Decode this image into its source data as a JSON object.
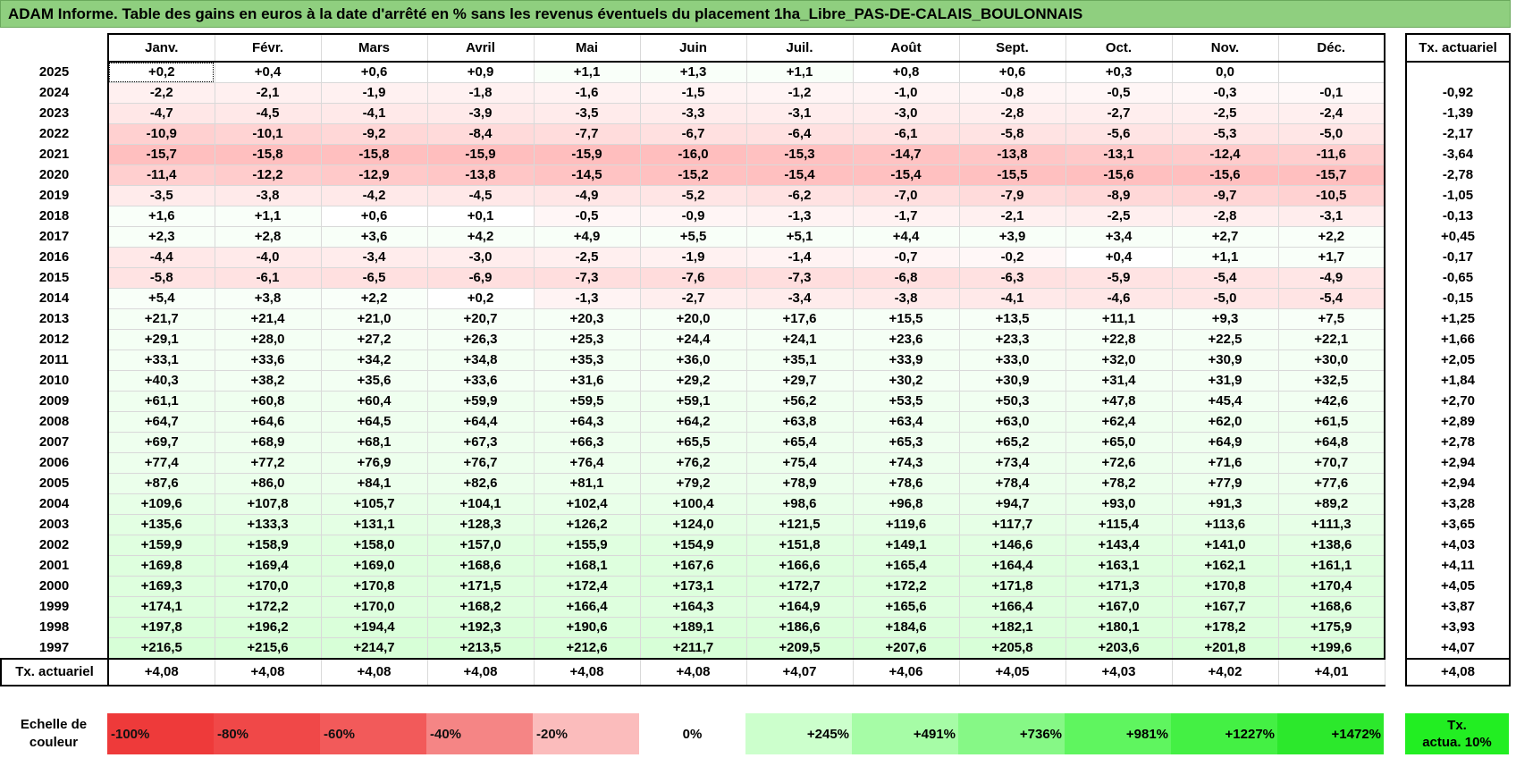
{
  "title": "ADAM Informe. Table des gains en euros à la date d'arrêté en % sans les revenus éventuels du placement 1ha_Libre_PAS-DE-CALAIS_BOULONNAIS",
  "months": [
    "Janv.",
    "Févr.",
    "Mars",
    "Avril",
    "Mai",
    "Juin",
    "Juil.",
    "Août",
    "Sept.",
    "Oct.",
    "Nov.",
    "Déc."
  ],
  "tx_header": "Tx. actuariel",
  "rows": [
    {
      "year": "2025",
      "values": [
        "+0,2",
        "+0,4",
        "+0,6",
        "+0,9",
        "+1,1",
        "+1,3",
        "+1,1",
        "+0,8",
        "+0,6",
        "+0,3",
        "0,0",
        ""
      ],
      "tx": ""
    },
    {
      "year": "2024",
      "values": [
        "-2,2",
        "-2,1",
        "-1,9",
        "-1,8",
        "-1,6",
        "-1,5",
        "-1,2",
        "-1,0",
        "-0,8",
        "-0,5",
        "-0,3",
        "-0,1"
      ],
      "tx": "-0,92"
    },
    {
      "year": "2023",
      "values": [
        "-4,7",
        "-4,5",
        "-4,1",
        "-3,9",
        "-3,5",
        "-3,3",
        "-3,1",
        "-3,0",
        "-2,8",
        "-2,7",
        "-2,5",
        "-2,4"
      ],
      "tx": "-1,39"
    },
    {
      "year": "2022",
      "values": [
        "-10,9",
        "-10,1",
        "-9,2",
        "-8,4",
        "-7,7",
        "-6,7",
        "-6,4",
        "-6,1",
        "-5,8",
        "-5,6",
        "-5,3",
        "-5,0"
      ],
      "tx": "-2,17"
    },
    {
      "year": "2021",
      "values": [
        "-15,7",
        "-15,8",
        "-15,8",
        "-15,9",
        "-15,9",
        "-16,0",
        "-15,3",
        "-14,7",
        "-13,8",
        "-13,1",
        "-12,4",
        "-11,6"
      ],
      "tx": "-3,64"
    },
    {
      "year": "2020",
      "values": [
        "-11,4",
        "-12,2",
        "-12,9",
        "-13,8",
        "-14,5",
        "-15,2",
        "-15,4",
        "-15,4",
        "-15,5",
        "-15,6",
        "-15,6",
        "-15,7"
      ],
      "tx": "-2,78"
    },
    {
      "year": "2019",
      "values": [
        "-3,5",
        "-3,8",
        "-4,2",
        "-4,5",
        "-4,9",
        "-5,2",
        "-6,2",
        "-7,0",
        "-7,9",
        "-8,9",
        "-9,7",
        "-10,5"
      ],
      "tx": "-1,05"
    },
    {
      "year": "2018",
      "values": [
        "+1,6",
        "+1,1",
        "+0,6",
        "+0,1",
        "-0,5",
        "-0,9",
        "-1,3",
        "-1,7",
        "-2,1",
        "-2,5",
        "-2,8",
        "-3,1"
      ],
      "tx": "-0,13"
    },
    {
      "year": "2017",
      "values": [
        "+2,3",
        "+2,8",
        "+3,6",
        "+4,2",
        "+4,9",
        "+5,5",
        "+5,1",
        "+4,4",
        "+3,9",
        "+3,4",
        "+2,7",
        "+2,2"
      ],
      "tx": "+0,45"
    },
    {
      "year": "2016",
      "values": [
        "-4,4",
        "-4,0",
        "-3,4",
        "-3,0",
        "-2,5",
        "-1,9",
        "-1,4",
        "-0,7",
        "-0,2",
        "+0,4",
        "+1,1",
        "+1,7"
      ],
      "tx": "-0,17"
    },
    {
      "year": "2015",
      "values": [
        "-5,8",
        "-6,1",
        "-6,5",
        "-6,9",
        "-7,3",
        "-7,6",
        "-7,3",
        "-6,8",
        "-6,3",
        "-5,9",
        "-5,4",
        "-4,9"
      ],
      "tx": "-0,65"
    },
    {
      "year": "2014",
      "values": [
        "+5,4",
        "+3,8",
        "+2,2",
        "+0,2",
        "-1,3",
        "-2,7",
        "-3,4",
        "-3,8",
        "-4,1",
        "-4,6",
        "-5,0",
        "-5,4"
      ],
      "tx": "-0,15"
    },
    {
      "year": "2013",
      "values": [
        "+21,7",
        "+21,4",
        "+21,0",
        "+20,7",
        "+20,3",
        "+20,0",
        "+17,6",
        "+15,5",
        "+13,5",
        "+11,1",
        "+9,3",
        "+7,5"
      ],
      "tx": "+1,25"
    },
    {
      "year": "2012",
      "values": [
        "+29,1",
        "+28,0",
        "+27,2",
        "+26,3",
        "+25,3",
        "+24,4",
        "+24,1",
        "+23,6",
        "+23,3",
        "+22,8",
        "+22,5",
        "+22,1"
      ],
      "tx": "+1,66"
    },
    {
      "year": "2011",
      "values": [
        "+33,1",
        "+33,6",
        "+34,2",
        "+34,8",
        "+35,3",
        "+36,0",
        "+35,1",
        "+33,9",
        "+33,0",
        "+32,0",
        "+30,9",
        "+30,0"
      ],
      "tx": "+2,05"
    },
    {
      "year": "2010",
      "values": [
        "+40,3",
        "+38,2",
        "+35,6",
        "+33,6",
        "+31,6",
        "+29,2",
        "+29,7",
        "+30,2",
        "+30,9",
        "+31,4",
        "+31,9",
        "+32,5"
      ],
      "tx": "+1,84"
    },
    {
      "year": "2009",
      "values": [
        "+61,1",
        "+60,8",
        "+60,4",
        "+59,9",
        "+59,5",
        "+59,1",
        "+56,2",
        "+53,5",
        "+50,3",
        "+47,8",
        "+45,4",
        "+42,6"
      ],
      "tx": "+2,70"
    },
    {
      "year": "2008",
      "values": [
        "+64,7",
        "+64,6",
        "+64,5",
        "+64,4",
        "+64,3",
        "+64,2",
        "+63,8",
        "+63,4",
        "+63,0",
        "+62,4",
        "+62,0",
        "+61,5"
      ],
      "tx": "+2,89"
    },
    {
      "year": "2007",
      "values": [
        "+69,7",
        "+68,9",
        "+68,1",
        "+67,3",
        "+66,3",
        "+65,5",
        "+65,4",
        "+65,3",
        "+65,2",
        "+65,0",
        "+64,9",
        "+64,8"
      ],
      "tx": "+2,78"
    },
    {
      "year": "2006",
      "values": [
        "+77,4",
        "+77,2",
        "+76,9",
        "+76,7",
        "+76,4",
        "+76,2",
        "+75,4",
        "+74,3",
        "+73,4",
        "+72,6",
        "+71,6",
        "+70,7"
      ],
      "tx": "+2,94"
    },
    {
      "year": "2005",
      "values": [
        "+87,6",
        "+86,0",
        "+84,1",
        "+82,6",
        "+81,1",
        "+79,2",
        "+78,9",
        "+78,6",
        "+78,4",
        "+78,2",
        "+77,9",
        "+77,6"
      ],
      "tx": "+2,94"
    },
    {
      "year": "2004",
      "values": [
        "+109,6",
        "+107,8",
        "+105,7",
        "+104,1",
        "+102,4",
        "+100,4",
        "+98,6",
        "+96,8",
        "+94,7",
        "+93,0",
        "+91,3",
        "+89,2"
      ],
      "tx": "+3,28"
    },
    {
      "year": "2003",
      "values": [
        "+135,6",
        "+133,3",
        "+131,1",
        "+128,3",
        "+126,2",
        "+124,0",
        "+121,5",
        "+119,6",
        "+117,7",
        "+115,4",
        "+113,6",
        "+111,3"
      ],
      "tx": "+3,65"
    },
    {
      "year": "2002",
      "values": [
        "+159,9",
        "+158,9",
        "+158,0",
        "+157,0",
        "+155,9",
        "+154,9",
        "+151,8",
        "+149,1",
        "+146,6",
        "+143,4",
        "+141,0",
        "+138,6"
      ],
      "tx": "+4,03"
    },
    {
      "year": "2001",
      "values": [
        "+169,8",
        "+169,4",
        "+169,0",
        "+168,6",
        "+168,1",
        "+167,6",
        "+166,6",
        "+165,4",
        "+164,4",
        "+163,1",
        "+162,1",
        "+161,1"
      ],
      "tx": "+4,11"
    },
    {
      "year": "2000",
      "values": [
        "+169,3",
        "+170,0",
        "+170,8",
        "+171,5",
        "+172,4",
        "+173,1",
        "+172,7",
        "+172,2",
        "+171,8",
        "+171,3",
        "+170,8",
        "+170,4"
      ],
      "tx": "+4,05"
    },
    {
      "year": "1999",
      "values": [
        "+174,1",
        "+172,2",
        "+170,0",
        "+168,2",
        "+166,4",
        "+164,3",
        "+164,9",
        "+165,6",
        "+166,4",
        "+167,0",
        "+167,7",
        "+168,6"
      ],
      "tx": "+3,87"
    },
    {
      "year": "1998",
      "values": [
        "+197,8",
        "+196,2",
        "+194,4",
        "+192,3",
        "+190,6",
        "+189,1",
        "+186,6",
        "+184,6",
        "+182,1",
        "+180,1",
        "+178,2",
        "+175,9"
      ],
      "tx": "+3,93"
    },
    {
      "year": "1997",
      "values": [
        "+216,5",
        "+215,6",
        "+214,7",
        "+213,5",
        "+212,6",
        "+211,7",
        "+209,5",
        "+207,6",
        "+205,8",
        "+203,6",
        "+201,8",
        "+199,6"
      ],
      "tx": "+4,07"
    }
  ],
  "footer": {
    "label": "Tx. actuariel",
    "values": [
      "+4,08",
      "+4,08",
      "+4,08",
      "+4,08",
      "+4,08",
      "+4,08",
      "+4,07",
      "+4,06",
      "+4,05",
      "+4,03",
      "+4,02",
      "+4,01"
    ],
    "tx": "+4,08"
  },
  "scale": {
    "label_line1": "Echelle de",
    "label_line2": "couleur",
    "items": [
      {
        "text": "-100%",
        "color": "#ee3a3a"
      },
      {
        "text": "-80%",
        "color": "#f04848"
      },
      {
        "text": "-60%",
        "color": "#f25a5a"
      },
      {
        "text": "-40%",
        "color": "#f58585"
      },
      {
        "text": "-20%",
        "color": "#fbbcbc"
      },
      {
        "text": "0%",
        "color": "#ffffff"
      },
      {
        "text": "+245%",
        "color": "#ccffcc"
      },
      {
        "text": "+491%",
        "color": "#a6fca6"
      },
      {
        "text": "+736%",
        "color": "#86f886"
      },
      {
        "text": "+981%",
        "color": "#5ff55f"
      },
      {
        "text": "+1227%",
        "color": "#44f044"
      },
      {
        "text": "+1472%",
        "color": "#2ce82c"
      }
    ],
    "tx_line1": "Tx.",
    "tx_line2": "actua. 10%",
    "tx_color": "#22ee22"
  },
  "colors": {
    "title_bg": "#8fcf7f",
    "negative_base": "#fbdcdc",
    "positive_base": "#e8fde8"
  }
}
